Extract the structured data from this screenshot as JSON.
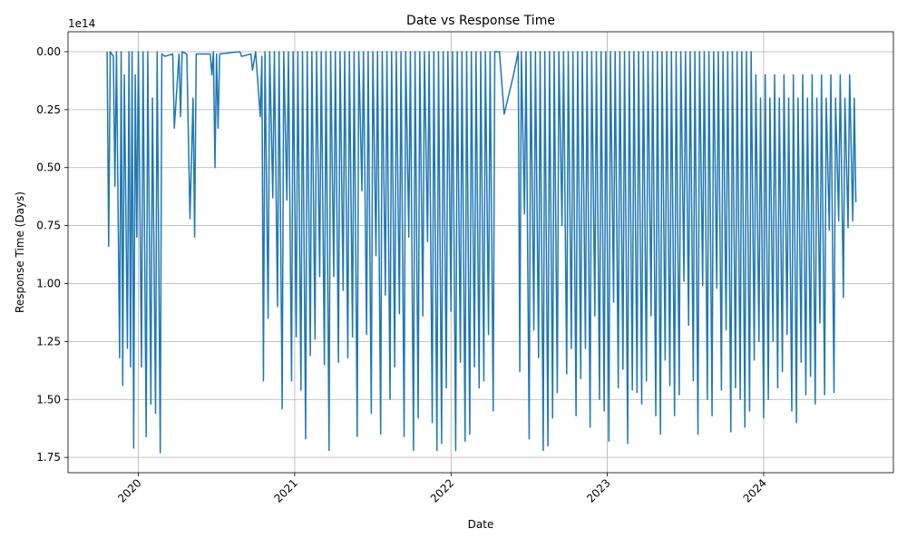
{
  "chart_data": {
    "type": "line",
    "title": "Date vs Response Time",
    "x_label": "Date",
    "y_label": "Response Time (Days)",
    "y_offset_label": "1e14",
    "color": "#1f77b4",
    "grid": true,
    "y_inverted": true,
    "xlim": [
      2019.55,
      2024.83
    ],
    "xticks": [
      2020,
      2021,
      2022,
      2023,
      2024
    ],
    "ylim": [
      -0.086,
      1.816
    ],
    "yticks": [
      {
        "value": 0,
        "label": "0.00"
      },
      0.25,
      {
        "value": 0.5,
        "label": "0.50"
      },
      0.75,
      {
        "value": 1,
        "label": "1.00"
      },
      1.25,
      {
        "value": 1.5,
        "label": "1.50"
      },
      1.75
    ],
    "x": [
      2019.8,
      2019.81,
      2019.82,
      2019.84,
      2019.85,
      2019.86,
      2019.88,
      2019.89,
      2019.9,
      2019.91,
      2019.93,
      2019.94,
      2019.95,
      2019.96,
      2019.97,
      2019.98,
      2019.99,
      2020.0,
      2020.02,
      2020.03,
      2020.05,
      2020.06,
      2020.08,
      2020.09,
      2020.11,
      2020.12,
      2020.14,
      2020.15,
      2020.17,
      2020.22,
      2020.23,
      2020.26,
      2020.27,
      2020.28,
      2020.31,
      2020.33,
      2020.35,
      2020.36,
      2020.37,
      2020.46,
      2020.47,
      2020.48,
      2020.49,
      2020.5,
      2020.51,
      2020.52,
      2020.65,
      2020.66,
      2020.72,
      2020.73,
      2020.75,
      2020.78,
      2020.79,
      2020.8,
      2020.81,
      2020.83,
      2020.84,
      2020.86,
      2020.87,
      2020.89,
      2020.9,
      2020.92,
      2020.93,
      2020.95,
      2020.96,
      2020.98,
      2020.99,
      2021.01,
      2021.02,
      2021.04,
      2021.05,
      2021.07,
      2021.08,
      2021.1,
      2021.11,
      2021.13,
      2021.14,
      2021.16,
      2021.17,
      2021.19,
      2021.2,
      2021.22,
      2021.23,
      2021.25,
      2021.26,
      2021.28,
      2021.29,
      2021.31,
      2021.32,
      2021.34,
      2021.35,
      2021.37,
      2021.38,
      2021.4,
      2021.41,
      2021.43,
      2021.44,
      2021.46,
      2021.47,
      2021.49,
      2021.5,
      2021.52,
      2021.53,
      2021.55,
      2021.56,
      2021.58,
      2021.59,
      2021.61,
      2021.62,
      2021.64,
      2021.65,
      2021.67,
      2021.68,
      2021.7,
      2021.71,
      2021.73,
      2021.74,
      2021.76,
      2021.77,
      2021.79,
      2021.8,
      2021.82,
      2021.83,
      2021.85,
      2021.86,
      2021.88,
      2021.89,
      2021.91,
      2021.92,
      2021.94,
      2021.95,
      2021.97,
      2021.98,
      2022.0,
      2022.01,
      2022.03,
      2022.04,
      2022.06,
      2022.07,
      2022.09,
      2022.1,
      2022.12,
      2022.13,
      2022.15,
      2022.16,
      2022.18,
      2022.19,
      2022.21,
      2022.22,
      2022.24,
      2022.25,
      2022.27,
      2022.28,
      2022.31,
      2022.34,
      2022.4,
      2022.43,
      2022.44,
      2022.45,
      2022.47,
      2022.48,
      2022.5,
      2022.51,
      2022.53,
      2022.54,
      2022.56,
      2022.57,
      2022.59,
      2022.6,
      2022.62,
      2022.63,
      2022.65,
      2022.66,
      2022.68,
      2022.69,
      2022.71,
      2022.72,
      2022.74,
      2022.75,
      2022.77,
      2022.78,
      2022.8,
      2022.81,
      2022.83,
      2022.84,
      2022.86,
      2022.87,
      2022.89,
      2022.9,
      2022.92,
      2022.93,
      2022.95,
      2022.96,
      2022.98,
      2022.99,
      2023.01,
      2023.02,
      2023.04,
      2023.05,
      2023.07,
      2023.08,
      2023.1,
      2023.11,
      2023.13,
      2023.14,
      2023.16,
      2023.17,
      2023.19,
      2023.2,
      2023.22,
      2023.23,
      2023.25,
      2023.26,
      2023.28,
      2023.29,
      2023.31,
      2023.32,
      2023.34,
      2023.35,
      2023.37,
      2023.38,
      2023.4,
      2023.41,
      2023.43,
      2023.44,
      2023.46,
      2023.47,
      2023.49,
      2023.5,
      2023.52,
      2023.53,
      2023.55,
      2023.56,
      2023.58,
      2023.59,
      2023.61,
      2023.62,
      2023.64,
      2023.65,
      2023.67,
      2023.68,
      2023.7,
      2023.71,
      2023.73,
      2023.74,
      2023.76,
      2023.77,
      2023.79,
      2023.8,
      2023.82,
      2023.83,
      2023.85,
      2023.86,
      2023.88,
      2023.89,
      2023.91,
      2023.92,
      2023.94,
      2023.95,
      2023.97,
      2023.98,
      2024.0,
      2024.01,
      2024.03,
      2024.04,
      2024.06,
      2024.07,
      2024.09,
      2024.1,
      2024.12,
      2024.13,
      2024.15,
      2024.16,
      2024.18,
      2024.19,
      2024.21,
      2024.22,
      2024.24,
      2024.25,
      2024.27,
      2024.28,
      2024.3,
      2024.31,
      2024.33,
      2024.34,
      2024.36,
      2024.37,
      2024.39,
      2024.4,
      2024.42,
      2024.43,
      2024.45,
      2024.46,
      2024.48,
      2024.49,
      2024.51,
      2024.52,
      2024.54,
      2024.55,
      2024.57,
      2024.58,
      2024.59
    ],
    "values": [
      0,
      0.84,
      0,
      0.02,
      0.58,
      0,
      1.32,
      0,
      1.44,
      0.1,
      1.28,
      0,
      1.36,
      0,
      1.71,
      0.1,
      0.8,
      0,
      1.36,
      0,
      1.66,
      0,
      1.52,
      0.2,
      1.56,
      0,
      1.73,
      0.01,
      0.02,
      0.01,
      0.33,
      0.01,
      0.28,
      0,
      0.01,
      0.72,
      0.2,
      0.8,
      0.01,
      0.01,
      0.1,
      0,
      0.5,
      0.01,
      0.33,
      0.01,
      0,
      0.02,
      0.01,
      0.08,
      0,
      0.28,
      0.02,
      1.42,
      0,
      1.15,
      0,
      0.63,
      0,
      1.1,
      0,
      1.54,
      0,
      0.64,
      0,
      1.42,
      0,
      1.23,
      0,
      1.46,
      0,
      1.67,
      0,
      1.31,
      0,
      1.24,
      0,
      0.97,
      0,
      1.35,
      0,
      1.72,
      0,
      0.97,
      0,
      1.34,
      0,
      1.03,
      0,
      1.32,
      0,
      1.23,
      0,
      1.66,
      0,
      0.6,
      0,
      1.22,
      0,
      1.56,
      0,
      0.88,
      0,
      1.65,
      0,
      1.05,
      0,
      1.5,
      0,
      1.36,
      0,
      1.13,
      0,
      1.66,
      0,
      0.8,
      0,
      1.72,
      0,
      1.58,
      0,
      1.14,
      0,
      0.82,
      0,
      1.6,
      0,
      1.72,
      0,
      1.69,
      0,
      1.45,
      0,
      1.12,
      0,
      1.72,
      0,
      1.34,
      0,
      1.68,
      0,
      1.65,
      0,
      1.36,
      0,
      1.45,
      0,
      1.42,
      0,
      1.22,
      0,
      1.55,
      0,
      0,
      0.27,
      0.1,
      0,
      1.38,
      0,
      0.7,
      0,
      1.67,
      0,
      1.2,
      0,
      1.32,
      0,
      1.72,
      0,
      1.7,
      0,
      1.58,
      0,
      1.47,
      0,
      0.75,
      0,
      1.39,
      0,
      1.28,
      0,
      1.57,
      0,
      1.41,
      0,
      1.28,
      0,
      1.62,
      0,
      1.14,
      0,
      1.5,
      0,
      1.55,
      0,
      1.68,
      0,
      1.08,
      0,
      1.45,
      0,
      1.37,
      0,
      1.69,
      0,
      1.46,
      0,
      1.47,
      0,
      1.52,
      0,
      1.42,
      0,
      1.14,
      0,
      1.57,
      0,
      1.65,
      0,
      1.33,
      0,
      1.44,
      0,
      1.57,
      0,
      1.48,
      0,
      0.99,
      0,
      1.18,
      0,
      1.42,
      0,
      1.65,
      0,
      1.01,
      0,
      1.5,
      0,
      1.57,
      0,
      1.02,
      0,
      1.46,
      0,
      1.2,
      0,
      1.64,
      0,
      1.45,
      0,
      1.5,
      0,
      1.62,
      0,
      1.55,
      0,
      1.33,
      0.1,
      1.25,
      0.2,
      1.58,
      0.1,
      1.5,
      0.2,
      1.25,
      0.1,
      1.45,
      0.2,
      1.38,
      0.1,
      1.22,
      0.2,
      1.55,
      0.1,
      1.6,
      0.2,
      1.34,
      0.1,
      1.48,
      0.2,
      1.4,
      0.1,
      1.52,
      0.2,
      1.17,
      0.1,
      1.48,
      0.2,
      0.77,
      0.1,
      1.47,
      0.2,
      0.73,
      0.1,
      1.06,
      0.2,
      0.76,
      0.1,
      0.73,
      0.2,
      0.65
    ]
  }
}
